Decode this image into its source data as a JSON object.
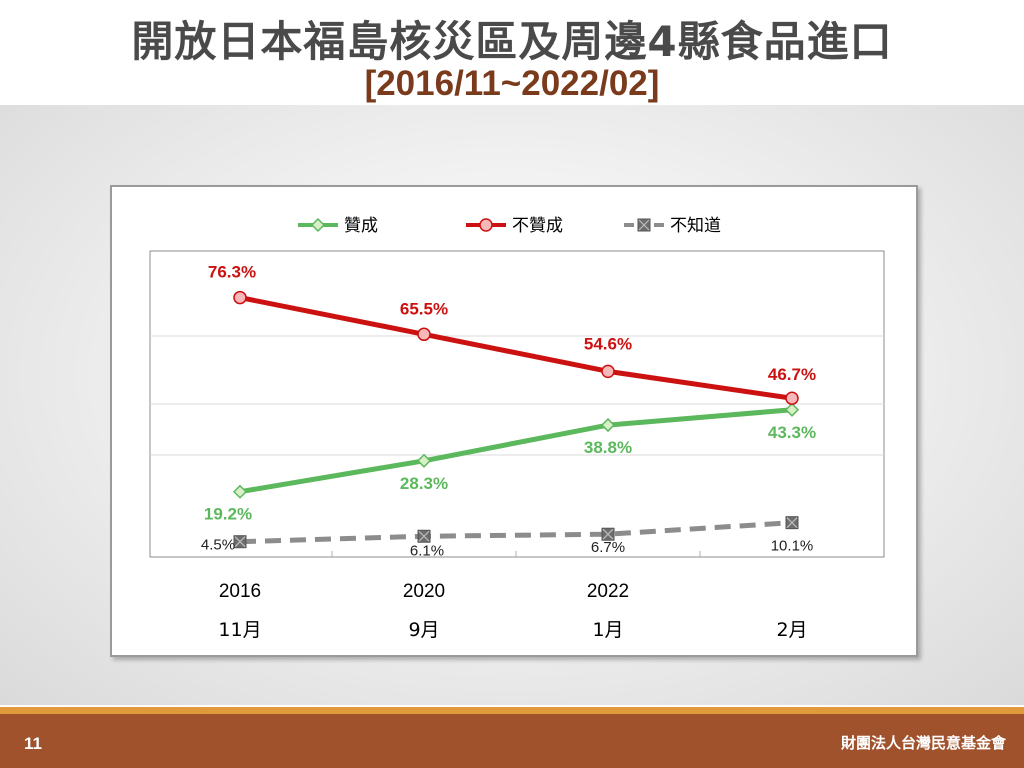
{
  "page": {
    "title": "開放日本福島核災區及周邊4縣食品進口",
    "subtitle": "[2016/11~2022/02]",
    "page_number": "11",
    "organization": "財團法人台灣民意基金會"
  },
  "chart_data": {
    "type": "line",
    "title": "",
    "xlabel": "",
    "ylabel": "",
    "ylim": [
      0,
      90
    ],
    "grid": true,
    "legend_position": "top",
    "categories": [
      [
        "2016",
        "11月"
      ],
      [
        "2020",
        "9月"
      ],
      [
        "2022",
        "1月"
      ],
      [
        "",
        "2月"
      ]
    ],
    "series": [
      {
        "name": "贊成",
        "values": [
          19.2,
          28.3,
          38.8,
          43.3
        ],
        "labels": [
          "19.2%",
          "28.3%",
          "38.8%",
          "43.3%"
        ],
        "color": "#5cb85c",
        "marker": "diamond",
        "dashed": false
      },
      {
        "name": "不贊成",
        "values": [
          76.3,
          65.5,
          54.6,
          46.7
        ],
        "labels": [
          "76.3%",
          "65.5%",
          "54.6%",
          "46.7%"
        ],
        "color": "#cc1111",
        "marker": "circle",
        "dashed": false
      },
      {
        "name": "不知道",
        "values": [
          4.5,
          6.1,
          6.7,
          10.1
        ],
        "labels": [
          "4.5%",
          "6.1%",
          "6.7%",
          "10.1%"
        ],
        "color": "#8c8c8c",
        "marker": "square-x",
        "dashed": true
      }
    ]
  }
}
